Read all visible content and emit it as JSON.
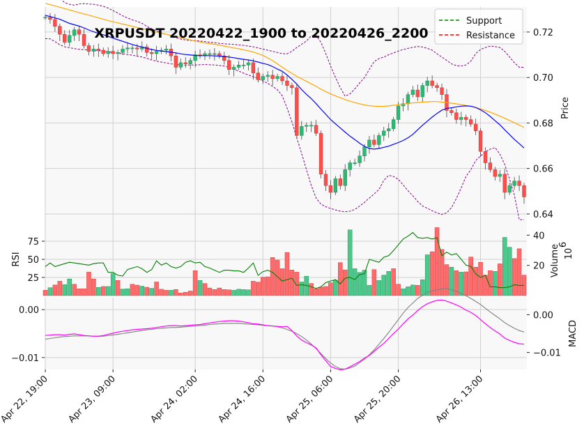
{
  "chart_data": {
    "type": "candlestick",
    "title": "XRPUSDT 20220422_1900 to 20220426_2200",
    "legend": {
      "placement": "top-right",
      "entries": [
        {
          "label": "Support",
          "color": "#008000",
          "style": "dashed"
        },
        {
          "label": "Resistance",
          "color": "#ff0000",
          "style": "dashed"
        }
      ]
    },
    "colors": {
      "up": "#26a69a",
      "up_fill": "#2eb872",
      "down": "#ef5350",
      "down_fill": "#ff4d4d",
      "ma_fast": "#0000ff",
      "ma_slow": "#ffa500",
      "bollinger": "#800080",
      "rsi": "#008000",
      "macd": "#ff00ff",
      "signal": "#808080",
      "panel_bg": "#f8f8f8",
      "grid": "#d0d0d0"
    },
    "x_ticks": [
      "Apr 22, 19:00",
      "Apr 23, 09:00",
      "Apr 24, 02:00",
      "Apr 24, 16:00",
      "Apr 25, 06:00",
      "Apr 25, 20:00",
      "Apr 26, 13:00"
    ],
    "x_tick_index": [
      0,
      14,
      31,
      45,
      59,
      73,
      90
    ],
    "num_bars": 100,
    "price_panel": {
      "ylabel": "Price",
      "ylim": [
        0.636,
        0.731
      ],
      "yticks": [
        0.64,
        0.66,
        0.68,
        0.7,
        0.72
      ],
      "ytick_labels": [
        "0.64",
        "0.66",
        "0.68",
        "0.70",
        "0.72"
      ]
    },
    "rsi_panel": {
      "ylabel": "RSI",
      "ylim": [
        0,
        100
      ],
      "yticks": [
        25,
        50,
        75
      ],
      "ytick_labels": [
        "25",
        "50",
        "75"
      ]
    },
    "volume_panel": {
      "ylabel": "Volume",
      "unit_label": "10",
      "unit_exp": "6",
      "ylim": [
        0,
        48
      ],
      "yticks": [
        20,
        40
      ],
      "ytick_labels": [
        "20",
        "40"
      ]
    },
    "macd_panel": {
      "ylabel": "MACD",
      "left_ylim": [
        -0.0125,
        0.0025
      ],
      "left_yticks": [
        -0.01,
        0.0
      ],
      "left_ytick_labels": [
        "−0.01",
        "0.00"
      ],
      "right_ylim": [
        -0.0145,
        0.0045
      ],
      "right_yticks": [
        -0.01,
        0.0
      ],
      "right_ytick_labels": [
        "−0.01",
        "0.00"
      ]
    },
    "close": [
      0.7265,
      0.7255,
      0.7225,
      0.719,
      0.7155,
      0.7185,
      0.721,
      0.719,
      0.714,
      0.7115,
      0.7125,
      0.712,
      0.7105,
      0.7115,
      0.7105,
      0.711,
      0.7125,
      0.713,
      0.713,
      0.7125,
      0.7135,
      0.711,
      0.7105,
      0.7115,
      0.712,
      0.7125,
      0.7095,
      0.7045,
      0.7065,
      0.706,
      0.7075,
      0.71,
      0.7095,
      0.7105,
      0.7105,
      0.7105,
      0.7095,
      0.7075,
      0.7035,
      0.7045,
      0.7055,
      0.7055,
      0.7065,
      0.702,
      0.699,
      0.7005,
      0.701,
      0.6995,
      0.7005,
      0.6985,
      0.6965,
      0.6955,
      0.6745,
      0.6785,
      0.679,
      0.679,
      0.6755,
      0.6575,
      0.6525,
      0.6495,
      0.6555,
      0.6525,
      0.6595,
      0.6625,
      0.6625,
      0.6655,
      0.6695,
      0.6725,
      0.6705,
      0.6745,
      0.6765,
      0.6775,
      0.6815,
      0.6875,
      0.6885,
      0.6925,
      0.6945,
      0.6915,
      0.6965,
      0.6985,
      0.6965,
      0.6955,
      0.6925,
      0.6855,
      0.6845,
      0.6815,
      0.6825,
      0.6815,
      0.6795,
      0.6765,
      0.6675,
      0.6625,
      0.6595,
      0.6565,
      0.6575,
      0.6495,
      0.6525,
      0.6545,
      0.6525,
      0.6475
    ],
    "open": [
      0.7265,
      0.7265,
      0.7255,
      0.7225,
      0.719,
      0.7155,
      0.7185,
      0.721,
      0.719,
      0.714,
      0.7115,
      0.7125,
      0.712,
      0.7105,
      0.7115,
      0.7105,
      0.711,
      0.7125,
      0.713,
      0.713,
      0.7125,
      0.7135,
      0.711,
      0.7105,
      0.7115,
      0.712,
      0.7125,
      0.7095,
      0.7045,
      0.7065,
      0.706,
      0.7075,
      0.71,
      0.7095,
      0.7105,
      0.7105,
      0.7105,
      0.7095,
      0.7075,
      0.7035,
      0.7045,
      0.7055,
      0.7055,
      0.7065,
      0.702,
      0.699,
      0.7005,
      0.701,
      0.6995,
      0.7005,
      0.6985,
      0.6965,
      0.6955,
      0.6745,
      0.6785,
      0.679,
      0.679,
      0.6755,
      0.6575,
      0.6525,
      0.6495,
      0.6555,
      0.6525,
      0.6595,
      0.6625,
      0.6625,
      0.6655,
      0.6695,
      0.6725,
      0.6705,
      0.6745,
      0.6765,
      0.6775,
      0.6815,
      0.6875,
      0.6885,
      0.6925,
      0.6945,
      0.6915,
      0.6965,
      0.6985,
      0.6965,
      0.6955,
      0.6925,
      0.6855,
      0.6845,
      0.6815,
      0.6825,
      0.6815,
      0.6795,
      0.6765,
      0.6675,
      0.6625,
      0.6595,
      0.6565,
      0.6575,
      0.6495,
      0.6525,
      0.6545,
      0.6525
    ],
    "ma_fast": [
      0.7273,
      0.7268,
      0.7262,
      0.7256,
      0.7247,
      0.7238,
      0.7232,
      0.7226,
      0.7218,
      0.7209,
      0.7201,
      0.7194,
      0.7188,
      0.7181,
      0.7173,
      0.7166,
      0.7159,
      0.7152,
      0.7145,
      0.7139,
      0.7134,
      0.7128,
      0.7123,
      0.7119,
      0.7116,
      0.7114,
      0.7111,
      0.7108,
      0.7104,
      0.7101,
      0.7099,
      0.7097,
      0.7096,
      0.7096,
      0.7096,
      0.7095,
      0.7094,
      0.7092,
      0.709,
      0.7087,
      0.7083,
      0.708,
      0.7077,
      0.7073,
      0.7068,
      0.7062,
      0.7057,
      0.7048,
      0.7037,
      0.7027,
      0.7011,
      0.6992,
      0.6971,
      0.6947,
      0.6926,
      0.6907,
      0.6885,
      0.6861,
      0.6838,
      0.6815,
      0.6796,
      0.6778,
      0.676,
      0.6742,
      0.6727,
      0.6711,
      0.6697,
      0.6688,
      0.6685,
      0.6688,
      0.6693,
      0.6698,
      0.6706,
      0.6714,
      0.6723,
      0.6735,
      0.675,
      0.677,
      0.679,
      0.6808,
      0.6826,
      0.6842,
      0.6856,
      0.6864,
      0.6867,
      0.6871,
      0.6874,
      0.6875,
      0.6874,
      0.6868,
      0.6858,
      0.6845,
      0.6829,
      0.681,
      0.6792,
      0.677,
      0.6749,
      0.6728,
      0.6709,
      0.669
    ],
    "ma_slow": [
      0.7326,
      0.732,
      0.7315,
      0.7309,
      0.7303,
      0.7297,
      0.7291,
      0.7285,
      0.7279,
      0.7274,
      0.7268,
      0.7262,
      0.7256,
      0.725,
      0.7245,
      0.724,
      0.7235,
      0.723,
      0.7225,
      0.722,
      0.7215,
      0.721,
      0.7205,
      0.72,
      0.7195,
      0.719,
      0.7185,
      0.718,
      0.7175,
      0.717,
      0.7165,
      0.716,
      0.7156,
      0.7152,
      0.7149,
      0.7146,
      0.7142,
      0.7138,
      0.7134,
      0.713,
      0.7126,
      0.7122,
      0.7117,
      0.7112,
      0.7105,
      0.7097,
      0.7086,
      0.7074,
      0.706,
      0.7045,
      0.7031,
      0.7018,
      0.7005,
      0.6994,
      0.6983,
      0.6972,
      0.6961,
      0.6949,
      0.6938,
      0.6928,
      0.6919,
      0.6911,
      0.6903,
      0.6896,
      0.689,
      0.6884,
      0.6879,
      0.6876,
      0.6874,
      0.6873,
      0.6873,
      0.6875,
      0.6878,
      0.688,
      0.6883,
      0.6886,
      0.6888,
      0.689,
      0.6892,
      0.6893,
      0.6894,
      0.6894,
      0.6892,
      0.689,
      0.6887,
      0.6884,
      0.6881,
      0.6877,
      0.6873,
      0.6868,
      0.6862,
      0.6855,
      0.6848,
      0.6839,
      0.683,
      0.6821,
      0.6811,
      0.6801,
      0.6791,
      0.678
    ],
    "bb_upper": [
      0.7375,
      0.7378,
      0.7368,
      0.7349,
      0.7329,
      0.7322,
      0.7318,
      0.7323,
      0.7325,
      0.7323,
      0.7322,
      0.7318,
      0.7313,
      0.7305,
      0.7294,
      0.7283,
      0.7271,
      0.7262,
      0.7253,
      0.7247,
      0.7238,
      0.7225,
      0.7214,
      0.7205,
      0.7195,
      0.719,
      0.7186,
      0.7175,
      0.7169,
      0.7165,
      0.7163,
      0.7162,
      0.716,
      0.7158,
      0.7155,
      0.7153,
      0.715,
      0.7148,
      0.7147,
      0.7145,
      0.7143,
      0.7141,
      0.7138,
      0.7135,
      0.713,
      0.7125,
      0.712,
      0.7115,
      0.711,
      0.7105,
      0.7104,
      0.7115,
      0.7132,
      0.7146,
      0.716,
      0.7183,
      0.7185,
      0.7155,
      0.7105,
      0.705,
      0.7,
      0.6955,
      0.6918,
      0.6928,
      0.695,
      0.6976,
      0.7,
      0.7035,
      0.707,
      0.7083,
      0.709,
      0.71,
      0.7108,
      0.7116,
      0.7123,
      0.7128,
      0.7133,
      0.7136,
      0.7134,
      0.7128,
      0.712,
      0.7104,
      0.709,
      0.7075,
      0.706,
      0.7052,
      0.705,
      0.7055,
      0.7072,
      0.7105,
      0.7123,
      0.7132,
      0.7138,
      0.7136,
      0.7132,
      0.7115,
      0.709,
      0.7065,
      0.7045,
      0.7045
    ],
    "bb_lower": [
      0.7171,
      0.717,
      0.7158,
      0.7144,
      0.7135,
      0.7131,
      0.7127,
      0.7124,
      0.7122,
      0.7121,
      0.712,
      0.7118,
      0.7116,
      0.7113,
      0.711,
      0.7107,
      0.7104,
      0.7101,
      0.7098,
      0.7094,
      0.709,
      0.7084,
      0.7077,
      0.7072,
      0.7068,
      0.7064,
      0.706,
      0.7057,
      0.7055,
      0.7054,
      0.7055,
      0.7055,
      0.7056,
      0.7057,
      0.7056,
      0.7055,
      0.7053,
      0.705,
      0.7044,
      0.7036,
      0.7028,
      0.7019,
      0.7011,
      0.7004,
      0.6995,
      0.6985,
      0.6974,
      0.6961,
      0.6946,
      0.692,
      0.6865,
      0.6805,
      0.6735,
      0.6666,
      0.6595,
      0.6525,
      0.647,
      0.6443,
      0.6432,
      0.6424,
      0.6418,
      0.6412,
      0.641,
      0.6412,
      0.642,
      0.6435,
      0.6451,
      0.647,
      0.6488,
      0.6508,
      0.6548,
      0.657,
      0.6565,
      0.6552,
      0.6528,
      0.6502,
      0.648,
      0.6455,
      0.6435,
      0.6425,
      0.6414,
      0.6405,
      0.6398,
      0.6405,
      0.6428,
      0.6468,
      0.6515,
      0.6565,
      0.6595,
      0.6635,
      0.6655,
      0.6673,
      0.6685,
      0.6692,
      0.6663,
      0.6618,
      0.6553,
      0.6483,
      0.6375,
      0.6375
    ],
    "volume": [
      3.5,
      5.2,
      7.0,
      9.5,
      7.2,
      11.0,
      7.5,
      4.5,
      4.5,
      15.5,
      11.0,
      5.4,
      6.0,
      6.0,
      14.5,
      10.0,
      4.3,
      4.5,
      7.5,
      6.9,
      6.2,
      5.5,
      4.8,
      9.0,
      4.2,
      3.5,
      3.5,
      4.0,
      1.7,
      2.2,
      3.0,
      16.5,
      10.0,
      8.0,
      5.0,
      4.0,
      5.0,
      4.0,
      3.8,
      3.5,
      4.2,
      4.0,
      3.8,
      9.5,
      8.9,
      12.2,
      12.4,
      25.2,
      23.5,
      17.8,
      28.5,
      16.9,
      15.5,
      9.0,
      12.8,
      8.0,
      4.5,
      5.6,
      6.0,
      8.5,
      10.2,
      21.8,
      17.0,
      43.5,
      17.8,
      15.3,
      16.8,
      6.8,
      17.2,
      10.0,
      13.5,
      16.0,
      17.8,
      7.5,
      4.5,
      5.8,
      7.0,
      6.8,
      10.5,
      27.0,
      29.0,
      45.0,
      30.5,
      20.5,
      18.8,
      16.5,
      15.5,
      15.7,
      25.5,
      18.8,
      22.0,
      13.5,
      16.5,
      16.0,
      21.0,
      38.5,
      32.0,
      24.5,
      31.0,
      13.5
    ],
    "vol_up": [
      false,
      true,
      false,
      false,
      true,
      true,
      false,
      false,
      false,
      false,
      false,
      true,
      false,
      true,
      true,
      false,
      true,
      true,
      false,
      false,
      true,
      false,
      true,
      false,
      false,
      false,
      true,
      false,
      false,
      false,
      false,
      false,
      true,
      false,
      false,
      false,
      false,
      false,
      false,
      true,
      true,
      true,
      true,
      false,
      false,
      false,
      false,
      false,
      false,
      false,
      false,
      false,
      false,
      true,
      true,
      false,
      false,
      false,
      false,
      false,
      true,
      false,
      false,
      true,
      true,
      true,
      true,
      true,
      false,
      true,
      true,
      true,
      false,
      false,
      true,
      true,
      true,
      false,
      true,
      true,
      false,
      false,
      false,
      false,
      true,
      false,
      true,
      false,
      false,
      false,
      false,
      false,
      false,
      true,
      false,
      true,
      true,
      false,
      false,
      false
    ],
    "rsi": [
      40,
      45,
      40,
      42,
      44,
      46,
      45,
      44,
      43,
      42,
      44,
      45,
      45,
      32,
      32,
      28,
      27,
      36,
      38,
      40,
      37,
      32,
      36,
      48,
      42,
      45,
      40,
      38,
      40,
      46,
      48,
      45,
      46,
      40,
      38,
      35,
      32,
      35,
      35,
      34,
      34,
      32,
      38,
      45,
      28,
      33,
      35,
      32,
      26,
      20,
      22,
      24,
      14,
      15,
      14,
      12,
      10,
      12,
      18,
      20,
      22,
      16,
      24,
      25,
      22,
      29,
      30,
      50,
      48,
      46,
      53,
      55,
      62,
      70,
      78,
      82,
      87,
      80,
      79,
      80,
      78,
      80,
      55,
      60,
      56,
      58,
      50,
      42,
      40,
      30,
      25,
      28,
      12,
      12,
      11,
      11,
      12,
      15,
      14,
      14
    ],
    "macd": [
      -0.0055,
      -0.0054,
      -0.0053,
      -0.0053,
      -0.0054,
      -0.0052,
      -0.0051,
      -0.0053,
      -0.0055,
      -0.0056,
      -0.0057,
      -0.0057,
      -0.0055,
      -0.0052,
      -0.0049,
      -0.0046,
      -0.0044,
      -0.0042,
      -0.004,
      -0.0039,
      -0.0038,
      -0.0037,
      -0.0036,
      -0.0034,
      -0.0032,
      -0.003,
      -0.0029,
      -0.0029,
      -0.003,
      -0.0029,
      -0.0028,
      -0.0027,
      -0.0026,
      -0.0024,
      -0.0022,
      -0.002,
      -0.0018,
      -0.0017,
      -0.0016,
      -0.0016,
      -0.0017,
      -0.0019,
      -0.0021,
      -0.0024,
      -0.0025,
      -0.0027,
      -0.0029,
      -0.003,
      -0.0031,
      -0.0032,
      -0.0031,
      -0.0042,
      -0.0056,
      -0.0067,
      -0.0074,
      -0.008,
      -0.0088,
      -0.0106,
      -0.0122,
      -0.0137,
      -0.0142,
      -0.0146,
      -0.0144,
      -0.0138,
      -0.0131,
      -0.0124,
      -0.0115,
      -0.0108,
      -0.0097,
      -0.0086,
      -0.0076,
      -0.0063,
      -0.005,
      -0.0038,
      -0.0024,
      -0.0011,
      -0.0001,
      0.0011,
      0.0021,
      0.0029,
      0.0034,
      0.0038,
      0.0039,
      0.0036,
      0.0031,
      0.0026,
      0.002,
      0.0012,
      0.0006,
      -0.0002,
      -0.0013,
      -0.0024,
      -0.0034,
      -0.0043,
      -0.0051,
      -0.0062,
      -0.0068,
      -0.0073,
      -0.0077,
      -0.0078
    ],
    "signal": [
      -0.0065,
      -0.0063,
      -0.0061,
      -0.0059,
      -0.0058,
      -0.0057,
      -0.0056,
      -0.0056,
      -0.0056,
      -0.0056,
      -0.0057,
      -0.0057,
      -0.0057,
      -0.0055,
      -0.0054,
      -0.0052,
      -0.005,
      -0.0048,
      -0.0046,
      -0.0044,
      -0.0042,
      -0.004,
      -0.0039,
      -0.0037,
      -0.0036,
      -0.0035,
      -0.0034,
      -0.0034,
      -0.0033,
      -0.0032,
      -0.0031,
      -0.003,
      -0.0029,
      -0.0028,
      -0.0026,
      -0.0025,
      -0.0024,
      -0.0023,
      -0.0023,
      -0.0023,
      -0.0023,
      -0.0024,
      -0.0025,
      -0.0026,
      -0.0027,
      -0.0028,
      -0.0029,
      -0.003,
      -0.0032,
      -0.0035,
      -0.0039,
      -0.0044,
      -0.005,
      -0.0058,
      -0.0067,
      -0.0078,
      -0.009,
      -0.0103,
      -0.0116,
      -0.0128,
      -0.0137,
      -0.0143,
      -0.0144,
      -0.0141,
      -0.0136,
      -0.0127,
      -0.0118,
      -0.0106,
      -0.0093,
      -0.0078,
      -0.0063,
      -0.0047,
      -0.003,
      -0.0013,
      0.0004,
      0.0019,
      0.0031,
      0.0043,
      0.0051,
      0.0059,
      0.0063,
      0.0066,
      0.0068,
      0.0069,
      0.0066,
      0.0062,
      0.0056,
      0.005,
      0.0043,
      0.0035,
      0.0027,
      0.0017,
      0.0007,
      -0.0002,
      -0.0011,
      -0.0021,
      -0.0029,
      -0.0036,
      -0.0042,
      -0.0046
    ]
  }
}
